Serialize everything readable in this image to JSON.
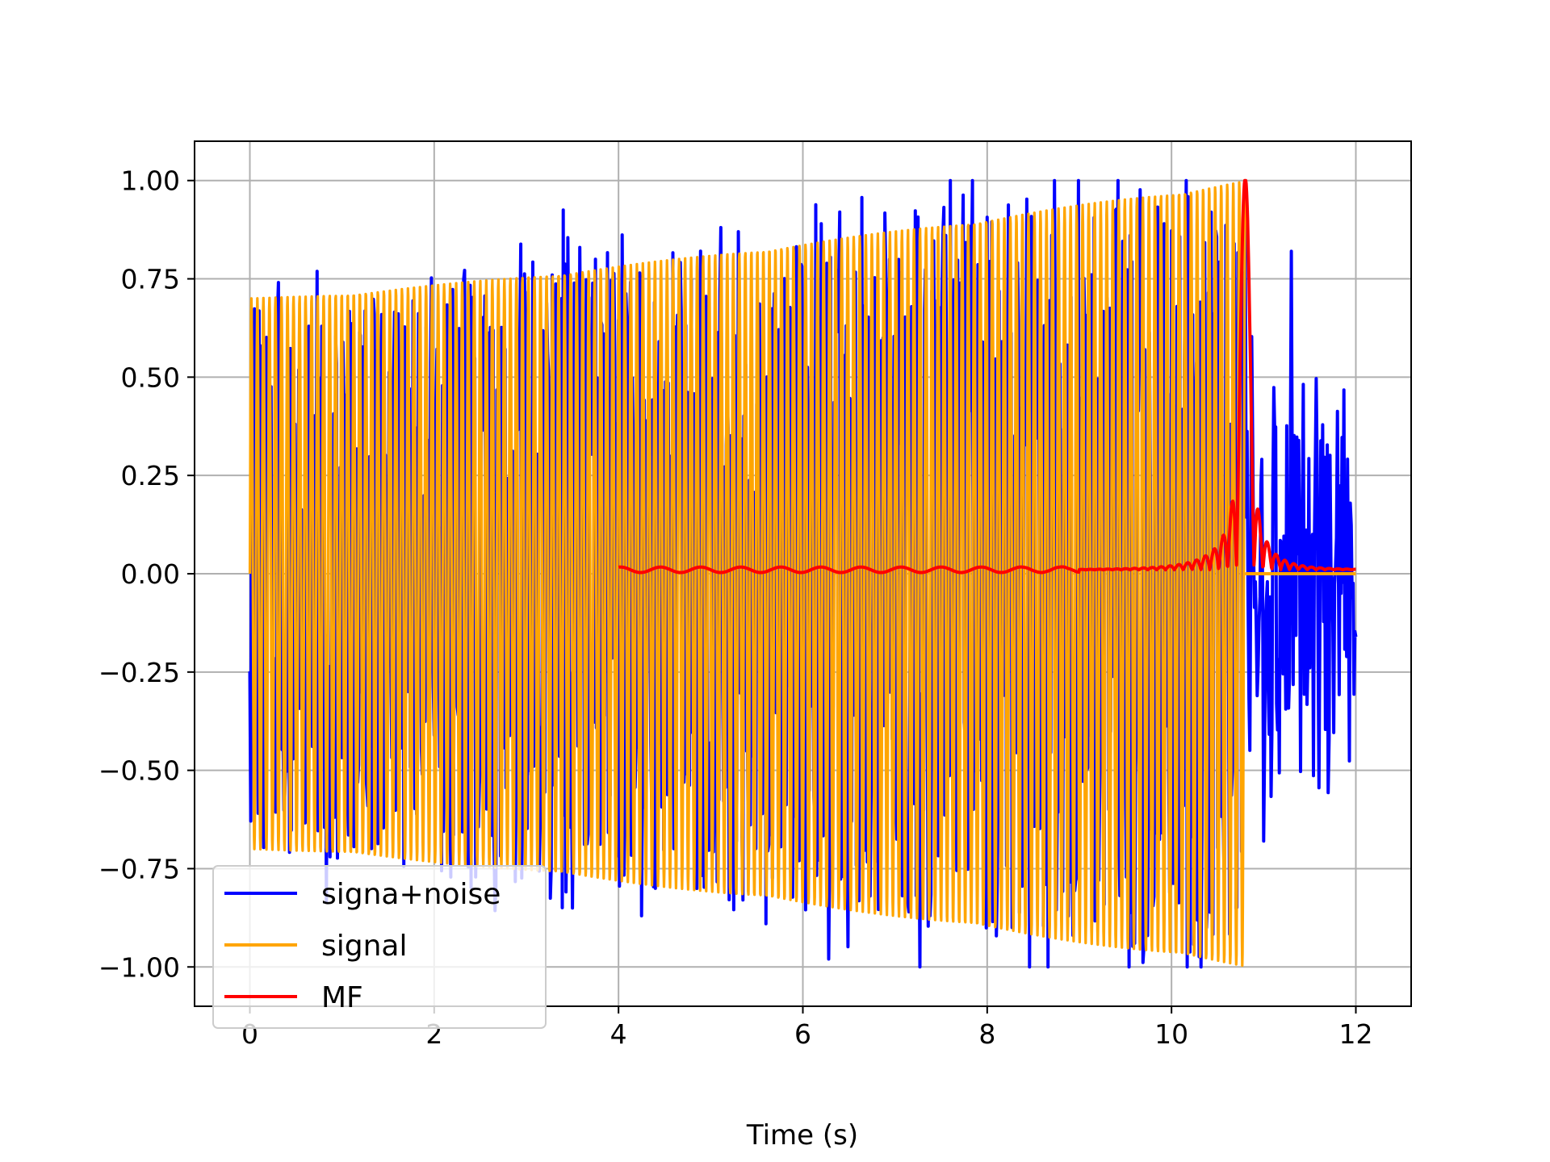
{
  "chart_data": {
    "type": "line",
    "title": "",
    "xlabel": "Time (s)",
    "ylabel": "",
    "xlim": [
      -0.6,
      12.6
    ],
    "ylim": [
      -1.1,
      1.1
    ],
    "xticks": [
      0,
      2,
      4,
      6,
      8,
      10,
      12
    ],
    "xtick_labels": [
      "0",
      "2",
      "4",
      "6",
      "8",
      "10",
      "12"
    ],
    "yticks": [
      1.0,
      0.75,
      0.5,
      0.25,
      0.0,
      -0.25,
      -0.5,
      -0.75,
      -1.0
    ],
    "ytick_labels": [
      "1.00",
      "0.75",
      "0.50",
      "0.25",
      "0.00",
      "−0.25",
      "−0.50",
      "−0.75",
      "−1.00"
    ],
    "grid": true,
    "legend_position": "lower-left",
    "series": [
      {
        "name": "signa+noise",
        "color": "#0000ff",
        "description_points": {
          "t_start": 0,
          "t_end": 12.0,
          "spikes": [
            {
              "t": 3.5,
              "y": 0.82
            },
            {
              "t": 3.58,
              "y": 0.83
            },
            {
              "t": 5.3,
              "y": 0.87
            },
            {
              "t": 6.2,
              "y": 0.89
            },
            {
              "t": 6.4,
              "y": 0.92
            },
            {
              "t": 8.27,
              "y": 0.92
            },
            {
              "t": 8.73,
              "y": 1.0
            },
            {
              "t": 11.3,
              "y": 0.82
            },
            {
              "t": 6.28,
              "y": -0.98
            },
            {
              "t": 8.27,
              "y": -0.9
            },
            {
              "t": 5.6,
              "y": -0.89
            },
            {
              "t": 4.25,
              "y": -0.87
            },
            {
              "t": 3.5,
              "y": -0.85
            },
            {
              "t": 9.6,
              "y": -0.94
            },
            {
              "t": 11.0,
              "y": -0.68
            }
          ],
          "tail_noise_amplitude": 0.5
        }
      },
      {
        "name": "signal",
        "color": "#ffa500",
        "envelope_start": 0.7,
        "envelope_end": 1.0,
        "t_start": 0,
        "t_end": 10.8
      },
      {
        "name": "MF",
        "color": "#ff0000",
        "t_start": 4.0,
        "t_end": 12.0,
        "peak_t": 10.8,
        "peak_y": 1.0,
        "baseline": 0.01
      }
    ]
  }
}
